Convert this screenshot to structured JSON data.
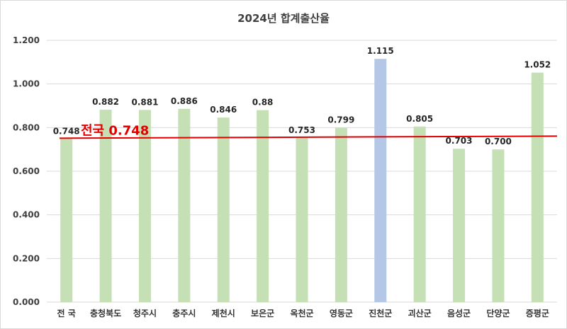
{
  "chart_data": {
    "type": "bar",
    "title": "2024년 합계출산율",
    "categories": [
      "전 국",
      "충청북도",
      "청주시",
      "충주시",
      "제천시",
      "보은군",
      "옥천군",
      "영동군",
      "진천군",
      "괴산군",
      "음성군",
      "단양군",
      "증평군"
    ],
    "values": [
      0.748,
      0.882,
      0.881,
      0.886,
      0.846,
      0.88,
      0.753,
      0.799,
      1.115,
      0.805,
      0.703,
      0.7,
      1.052
    ],
    "value_labels": [
      "0.748",
      "0.882",
      "0.881",
      "0.886",
      "0.846",
      "0.88",
      "0.753",
      "0.799",
      "1.115",
      "0.805",
      "0.703",
      "0.700",
      "1.052"
    ],
    "highlight_category": "진천군",
    "ylim": [
      0,
      1.2
    ],
    "yticks": [
      "0.000",
      "0.200",
      "0.400",
      "0.600",
      "0.800",
      "1.000",
      "1.200"
    ],
    "ytick_values": [
      0,
      0.2,
      0.4,
      0.6,
      0.8,
      1.0,
      1.2
    ],
    "grid": true,
    "reference_line": {
      "label": "전국 0.748",
      "value": 0.748
    },
    "colors": {
      "bar": "#c5e0b4",
      "highlight": "#b4c7e7",
      "reference": "#e00000",
      "grid": "#d9d9d9"
    }
  }
}
